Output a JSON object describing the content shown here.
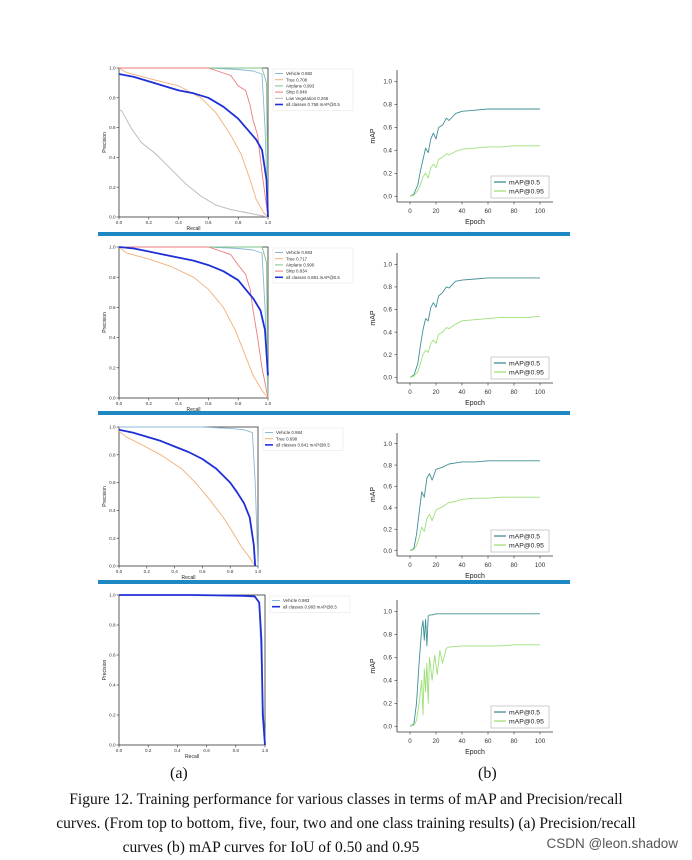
{
  "chart_data": [
    {
      "type": "line",
      "panel": "pr-five-classes",
      "xlabel": "Recall",
      "ylabel": "Precision",
      "xlim": [
        0,
        1
      ],
      "ylim": [
        0,
        1
      ],
      "xticks": [
        "0.0",
        "0.2",
        "0.4",
        "0.6",
        "0.8",
        "1.0"
      ],
      "yticks": [
        "0.0",
        "0.2",
        "0.4",
        "0.6",
        "0.8",
        "1.0"
      ],
      "legend_position": "top-right",
      "series": [
        {
          "name": "Vehicle 0.982",
          "color": "#8ab8d8",
          "x": [
            0,
            0.3,
            0.6,
            0.8,
            0.9,
            0.96,
            0.98,
            1.0
          ],
          "y": [
            1.0,
            1.0,
            1.0,
            0.99,
            0.98,
            0.96,
            0.6,
            0.0
          ]
        },
        {
          "name": "Tree 0.708",
          "color": "#f0b07a",
          "x": [
            0,
            0.05,
            0.2,
            0.4,
            0.55,
            0.65,
            0.75,
            0.82,
            0.88,
            0.92,
            0.97,
            1.0
          ],
          "y": [
            1.0,
            0.97,
            0.93,
            0.88,
            0.8,
            0.7,
            0.55,
            0.42,
            0.25,
            0.12,
            0.03,
            0.0
          ]
        },
        {
          "name": "Airplane 0.993",
          "color": "#7fc48a",
          "x": [
            0,
            0.5,
            0.9,
            0.96,
            0.99,
            1.0
          ],
          "y": [
            1.0,
            1.0,
            1.0,
            1.0,
            0.9,
            0.0
          ]
        },
        {
          "name": "Ship 0.848",
          "color": "#ee7a7a",
          "x": [
            0,
            0.6,
            0.75,
            0.8,
            0.85,
            0.88,
            0.9,
            0.93,
            0.96,
            1.0
          ],
          "y": [
            1.0,
            1.0,
            0.95,
            0.88,
            0.85,
            0.75,
            0.65,
            0.55,
            0.3,
            0.0
          ]
        },
        {
          "name": "Low Vegetation 0.265",
          "color": "#b8b8b8",
          "x": [
            0,
            0.02,
            0.08,
            0.15,
            0.25,
            0.35,
            0.45,
            0.55,
            0.65,
            0.75,
            0.85,
            0.95,
            1.0
          ],
          "y": [
            0.72,
            0.71,
            0.6,
            0.5,
            0.42,
            0.32,
            0.22,
            0.14,
            0.08,
            0.05,
            0.03,
            0.01,
            0.0
          ]
        },
        {
          "name": "all classes 0.758 mAP@0.5",
          "color": "#1f2fd8",
          "bold": true,
          "x": [
            0,
            0.1,
            0.2,
            0.3,
            0.4,
            0.5,
            0.6,
            0.7,
            0.8,
            0.86,
            0.92,
            0.96,
            0.99,
            1.0
          ],
          "y": [
            0.96,
            0.94,
            0.91,
            0.88,
            0.85,
            0.83,
            0.8,
            0.74,
            0.66,
            0.59,
            0.52,
            0.45,
            0.25,
            0.0
          ]
        }
      ]
    },
    {
      "type": "line",
      "panel": "map-five-classes",
      "xlabel": "Epoch",
      "ylabel": "mAP",
      "xlim": [
        -10,
        110
      ],
      "ylim": [
        -0.05,
        1.1
      ],
      "xticks": [
        "0",
        "20",
        "40",
        "60",
        "80",
        "100"
      ],
      "yticks": [
        "0.0",
        "0.2",
        "0.4",
        "0.6",
        "0.8",
        "1.0"
      ],
      "legend_position": "bottom-right",
      "series": [
        {
          "name": "mAP@0.5",
          "color": "#3f8f96",
          "x": [
            0,
            3,
            6,
            8,
            10,
            12,
            14,
            16,
            18,
            20,
            22,
            25,
            28,
            30,
            35,
            40,
            50,
            60,
            70,
            80,
            90,
            100
          ],
          "y": [
            0,
            0.02,
            0.1,
            0.22,
            0.32,
            0.42,
            0.38,
            0.5,
            0.55,
            0.5,
            0.6,
            0.62,
            0.68,
            0.66,
            0.72,
            0.74,
            0.75,
            0.76,
            0.76,
            0.76,
            0.76,
            0.76
          ]
        },
        {
          "name": "mAP@0.95",
          "color": "#9ee07a",
          "x": [
            0,
            3,
            6,
            8,
            10,
            12,
            14,
            16,
            18,
            20,
            22,
            25,
            28,
            30,
            35,
            40,
            50,
            60,
            70,
            80,
            90,
            100
          ],
          "y": [
            0,
            0.01,
            0.05,
            0.1,
            0.17,
            0.2,
            0.16,
            0.25,
            0.28,
            0.25,
            0.32,
            0.34,
            0.37,
            0.36,
            0.39,
            0.41,
            0.42,
            0.43,
            0.43,
            0.44,
            0.44,
            0.44
          ]
        }
      ]
    },
    {
      "type": "line",
      "panel": "pr-four-classes",
      "xlabel": "Recall",
      "ylabel": "Precision",
      "xlim": [
        0,
        1
      ],
      "ylim": [
        0,
        1
      ],
      "xticks": [
        "0.0",
        "0.2",
        "0.4",
        "0.6",
        "0.8",
        "1.0"
      ],
      "yticks": [
        "0.0",
        "0.2",
        "0.4",
        "0.6",
        "0.8",
        "1.0"
      ],
      "legend_position": "top-right",
      "series": [
        {
          "name": "Vehicle 0.983",
          "color": "#8ab8d8",
          "x": [
            0,
            0.3,
            0.6,
            0.8,
            0.9,
            0.96,
            0.98,
            1.0
          ],
          "y": [
            1.0,
            1.0,
            1.0,
            0.99,
            0.98,
            0.96,
            0.6,
            0.0
          ]
        },
        {
          "name": "Tree 0.717",
          "color": "#f0b07a",
          "x": [
            0,
            0.05,
            0.2,
            0.35,
            0.5,
            0.6,
            0.7,
            0.78,
            0.84,
            0.9,
            0.96,
            1.0
          ],
          "y": [
            1.0,
            0.96,
            0.92,
            0.87,
            0.8,
            0.72,
            0.6,
            0.45,
            0.3,
            0.15,
            0.05,
            0.0
          ]
        },
        {
          "name": "Airplane 0.990",
          "color": "#7fc48a",
          "x": [
            0,
            0.5,
            0.9,
            0.96,
            0.99,
            1.0
          ],
          "y": [
            1.0,
            1.0,
            1.0,
            1.0,
            0.9,
            0.0
          ]
        },
        {
          "name": "Ship 0.834",
          "color": "#ee7a7a",
          "x": [
            0,
            0.6,
            0.75,
            0.8,
            0.85,
            0.88,
            0.9,
            0.93,
            0.96,
            1.0
          ],
          "y": [
            1.0,
            1.0,
            0.95,
            0.88,
            0.82,
            0.72,
            0.58,
            0.4,
            0.2,
            0.0
          ]
        },
        {
          "name": "all classes 0.881 mAP@0.5",
          "color": "#1f2fd8",
          "bold": true,
          "x": [
            0,
            0.1,
            0.2,
            0.3,
            0.4,
            0.5,
            0.6,
            0.7,
            0.8,
            0.85,
            0.9,
            0.95,
            0.98,
            1.0
          ],
          "y": [
            1.0,
            0.99,
            0.97,
            0.95,
            0.93,
            0.91,
            0.88,
            0.84,
            0.78,
            0.72,
            0.66,
            0.58,
            0.45,
            0.15
          ]
        }
      ]
    },
    {
      "type": "line",
      "panel": "map-four-classes",
      "xlabel": "Epoch",
      "ylabel": "mAP",
      "xlim": [
        -10,
        110
      ],
      "ylim": [
        -0.05,
        1.1
      ],
      "xticks": [
        "0",
        "20",
        "40",
        "60",
        "80",
        "100"
      ],
      "yticks": [
        "0.0",
        "0.2",
        "0.4",
        "0.6",
        "0.8",
        "1.0"
      ],
      "legend_position": "bottom-right",
      "series": [
        {
          "name": "mAP@0.5",
          "color": "#3f8f96",
          "x": [
            0,
            3,
            6,
            8,
            10,
            12,
            14,
            16,
            18,
            20,
            22,
            25,
            28,
            30,
            35,
            40,
            50,
            60,
            70,
            80,
            90,
            100
          ],
          "y": [
            0,
            0.02,
            0.12,
            0.28,
            0.42,
            0.52,
            0.5,
            0.62,
            0.66,
            0.62,
            0.72,
            0.75,
            0.8,
            0.79,
            0.85,
            0.86,
            0.87,
            0.88,
            0.88,
            0.88,
            0.88,
            0.88
          ]
        },
        {
          "name": "mAP@0.95",
          "color": "#9ee07a",
          "x": [
            0,
            3,
            6,
            8,
            10,
            12,
            14,
            16,
            18,
            20,
            22,
            25,
            28,
            30,
            35,
            40,
            50,
            60,
            70,
            80,
            90,
            100
          ],
          "y": [
            0,
            0.01,
            0.05,
            0.12,
            0.2,
            0.24,
            0.22,
            0.3,
            0.33,
            0.3,
            0.38,
            0.4,
            0.44,
            0.43,
            0.47,
            0.5,
            0.51,
            0.52,
            0.53,
            0.53,
            0.53,
            0.54
          ]
        }
      ]
    },
    {
      "type": "line",
      "panel": "pr-two-classes",
      "xlabel": "Recall",
      "ylabel": "Precision",
      "xlim": [
        0,
        1
      ],
      "ylim": [
        0,
        1
      ],
      "xticks": [
        "0.0",
        "0.2",
        "0.4",
        "0.6",
        "0.8",
        "1.0"
      ],
      "yticks": [
        "0.0",
        "0.2",
        "0.4",
        "0.6",
        "0.8",
        "1.0"
      ],
      "legend_position": "top-right",
      "series": [
        {
          "name": "Vehicle 0.984",
          "color": "#8ab8d8",
          "x": [
            0,
            0.3,
            0.6,
            0.8,
            0.9,
            0.96,
            0.98,
            1.0
          ],
          "y": [
            1.0,
            1.0,
            1.0,
            0.99,
            0.98,
            0.96,
            0.6,
            0.0
          ]
        },
        {
          "name": "Tree 0.698",
          "color": "#f0b07a",
          "x": [
            0,
            0.05,
            0.15,
            0.3,
            0.45,
            0.55,
            0.65,
            0.75,
            0.82,
            0.88,
            0.94,
            0.98
          ],
          "y": [
            0.97,
            0.93,
            0.88,
            0.8,
            0.7,
            0.6,
            0.48,
            0.35,
            0.24,
            0.14,
            0.06,
            0.0
          ]
        },
        {
          "name": "all classes 0.841 mAP@0.5",
          "color": "#1f2fd8",
          "bold": true,
          "x": [
            0,
            0.1,
            0.2,
            0.3,
            0.4,
            0.5,
            0.6,
            0.7,
            0.8,
            0.85,
            0.9,
            0.94,
            0.97,
            0.98
          ],
          "y": [
            0.98,
            0.96,
            0.93,
            0.9,
            0.86,
            0.82,
            0.77,
            0.7,
            0.6,
            0.53,
            0.45,
            0.35,
            0.15,
            0.0
          ]
        }
      ]
    },
    {
      "type": "line",
      "panel": "map-two-classes",
      "xlabel": "Epoch",
      "ylabel": "mAP",
      "xlim": [
        -10,
        110
      ],
      "ylim": [
        -0.05,
        1.1
      ],
      "xticks": [
        "0",
        "20",
        "40",
        "60",
        "80",
        "100"
      ],
      "yticks": [
        "0.0",
        "0.2",
        "0.4",
        "0.6",
        "0.8",
        "1.0"
      ],
      "legend_position": "bottom-right",
      "series": [
        {
          "name": "mAP@0.5",
          "color": "#3f8f96",
          "x": [
            0,
            3,
            5,
            7,
            9,
            11,
            13,
            15,
            17,
            20,
            25,
            30,
            35,
            40,
            50,
            60,
            70,
            80,
            90,
            100
          ],
          "y": [
            0,
            0.02,
            0.15,
            0.35,
            0.55,
            0.5,
            0.68,
            0.72,
            0.66,
            0.76,
            0.78,
            0.81,
            0.82,
            0.83,
            0.83,
            0.84,
            0.84,
            0.84,
            0.84,
            0.84
          ]
        },
        {
          "name": "mAP@0.95",
          "color": "#9ee07a",
          "x": [
            0,
            3,
            5,
            7,
            9,
            11,
            13,
            15,
            17,
            20,
            25,
            30,
            35,
            40,
            50,
            60,
            70,
            80,
            90,
            100
          ],
          "y": [
            0,
            0.01,
            0.05,
            0.12,
            0.22,
            0.18,
            0.3,
            0.34,
            0.28,
            0.38,
            0.41,
            0.45,
            0.46,
            0.48,
            0.49,
            0.49,
            0.5,
            0.5,
            0.5,
            0.5
          ]
        }
      ]
    },
    {
      "type": "line",
      "panel": "pr-one-class",
      "xlabel": "Recall",
      "ylabel": "Precision",
      "xlim": [
        0,
        1
      ],
      "ylim": [
        0,
        1
      ],
      "xticks": [
        "0.0",
        "0.2",
        "0.4",
        "0.6",
        "0.8",
        "1.0"
      ],
      "yticks": [
        "0.0",
        "0.2",
        "0.4",
        "0.6",
        "0.8",
        "1.0"
      ],
      "legend_position": "top-right",
      "series": [
        {
          "name": "Vehicle 0.983",
          "color": "#8ab8d8",
          "x": [
            0,
            0.5,
            0.85,
            0.93,
            0.96,
            0.98,
            1.0
          ],
          "y": [
            1.0,
            1.0,
            0.995,
            0.99,
            0.95,
            0.4,
            0.0
          ]
        },
        {
          "name": "all classes 0.983 mAP@0.5",
          "color": "#1f2fd8",
          "bold": true,
          "x": [
            0,
            0.5,
            0.85,
            0.93,
            0.96,
            0.975,
            0.985,
            1.0
          ],
          "y": [
            1.0,
            1.0,
            0.995,
            0.99,
            0.95,
            0.7,
            0.2,
            0.0
          ]
        }
      ]
    },
    {
      "type": "line",
      "panel": "map-one-class",
      "xlabel": "Epoch",
      "ylabel": "mAP",
      "xlim": [
        -10,
        110
      ],
      "ylim": [
        -0.05,
        1.1
      ],
      "xticks": [
        "0",
        "20",
        "40",
        "60",
        "80",
        "100"
      ],
      "yticks": [
        "0.0",
        "0.2",
        "0.4",
        "0.6",
        "0.8",
        "1.0"
      ],
      "legend_position": "bottom-right",
      "series": [
        {
          "name": "mAP@0.5",
          "color": "#3f8f96",
          "x": [
            0,
            3,
            5,
            7,
            9,
            10,
            11,
            12,
            13,
            14,
            15,
            17,
            20,
            25,
            30,
            40,
            50,
            60,
            70,
            80,
            90,
            100
          ],
          "y": [
            0,
            0.02,
            0.2,
            0.55,
            0.85,
            0.92,
            0.75,
            0.93,
            0.7,
            0.96,
            0.97,
            0.97,
            0.98,
            0.98,
            0.98,
            0.98,
            0.98,
            0.98,
            0.98,
            0.98,
            0.98,
            0.98
          ]
        },
        {
          "name": "mAP@0.95",
          "color": "#9ee07a",
          "x": [
            0,
            3,
            5,
            7,
            9,
            10,
            11,
            12,
            13,
            14,
            15,
            17,
            19,
            21,
            23,
            25,
            28,
            30,
            40,
            50,
            60,
            70,
            80,
            90,
            100
          ],
          "y": [
            0,
            0.01,
            0.05,
            0.2,
            0.4,
            0.1,
            0.5,
            0.3,
            0.55,
            0.2,
            0.6,
            0.4,
            0.62,
            0.45,
            0.66,
            0.55,
            0.68,
            0.69,
            0.7,
            0.7,
            0.7,
            0.7,
            0.71,
            0.71,
            0.71
          ]
        }
      ]
    }
  ],
  "labels": {
    "a": "(a)",
    "b": "(b)"
  },
  "caption": {
    "line1": "Figure 12. Training performance for various classes in terms of mAP and Precision/recall",
    "line2": "curves. (From top to bottom, five, four, two and one class training results) (a) Precision/recall",
    "line3": "curves (b) mAP curves for IoU of 0.50 and 0.95"
  },
  "watermark": "CSDN @leon.shadow",
  "colors": {
    "separator": "#1e88c4"
  }
}
